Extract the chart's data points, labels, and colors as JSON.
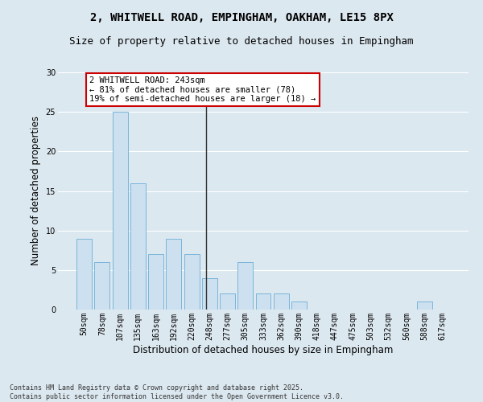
{
  "title1": "2, WHITWELL ROAD, EMPINGHAM, OAKHAM, LE15 8PX",
  "title2": "Size of property relative to detached houses in Empingham",
  "xlabel": "Distribution of detached houses by size in Empingham",
  "ylabel": "Number of detached properties",
  "bar_color": "#cce0f0",
  "bar_edge_color": "#6baed6",
  "background_color": "#dce8f0",
  "grid_color": "#ffffff",
  "categories": [
    "50sqm",
    "78sqm",
    "107sqm",
    "135sqm",
    "163sqm",
    "192sqm",
    "220sqm",
    "248sqm",
    "277sqm",
    "305sqm",
    "333sqm",
    "362sqm",
    "390sqm",
    "418sqm",
    "447sqm",
    "475sqm",
    "503sqm",
    "532sqm",
    "560sqm",
    "588sqm",
    "617sqm"
  ],
  "values": [
    9,
    6,
    25,
    16,
    7,
    9,
    7,
    4,
    2,
    6,
    2,
    2,
    1,
    0,
    0,
    0,
    0,
    0,
    0,
    1,
    0
  ],
  "vline_color": "#333333",
  "annotation_text": "2 WHITWELL ROAD: 243sqm\n← 81% of detached houses are smaller (78)\n19% of semi-detached houses are larger (18) →",
  "annotation_box_color": "#ffffff",
  "annotation_box_edge": "#cc0000",
  "ylim": [
    0,
    30
  ],
  "yticks": [
    0,
    5,
    10,
    15,
    20,
    25,
    30
  ],
  "footer": "Contains HM Land Registry data © Crown copyright and database right 2025.\nContains public sector information licensed under the Open Government Licence v3.0.",
  "title_fontsize": 10,
  "subtitle_fontsize": 9,
  "tick_fontsize": 7,
  "label_fontsize": 8.5,
  "annot_fontsize": 7.5,
  "footer_fontsize": 6
}
